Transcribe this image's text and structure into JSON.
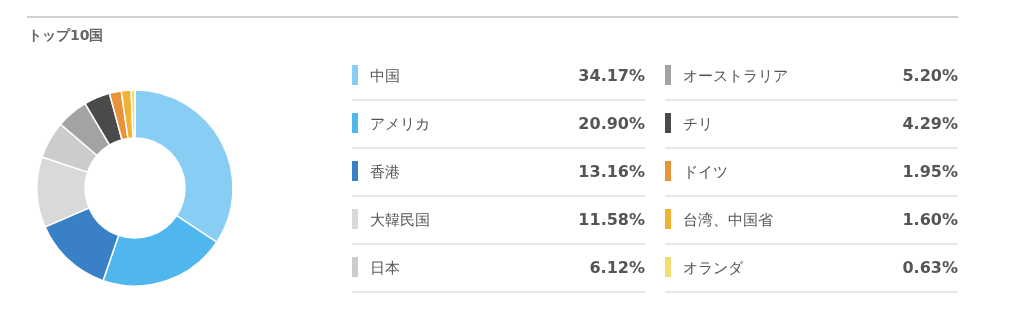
{
  "chart_data": {
    "type": "donut",
    "title": "トップ10国",
    "legend": "right",
    "categories": [
      "中国",
      "アメリカ",
      "香港",
      "大韓民国",
      "日本",
      "オーストラリア",
      "チリ",
      "ドイツ",
      "台湾、中国省",
      "オランダ"
    ],
    "values": [
      34.17,
      20.9,
      13.16,
      11.58,
      6.12,
      5.2,
      4.29,
      1.95,
      1.6,
      0.63
    ],
    "value_labels": [
      "34.17%",
      "20.90%",
      "13.16%",
      "11.58%",
      "6.12%",
      "5.20%",
      "4.29%",
      "1.95%",
      "1.60%",
      "0.63%"
    ],
    "colors": [
      "#87cdf4",
      "#50b6ee",
      "#3a80c6",
      "#d9d9d9",
      "#cccccc",
      "#a3a3a3",
      "#4a4a4a",
      "#e8923a",
      "#f0b232",
      "#f5dc70"
    ]
  }
}
